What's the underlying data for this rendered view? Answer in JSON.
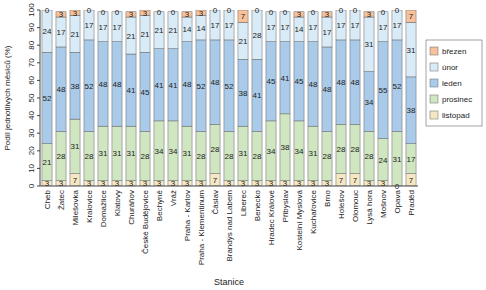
{
  "chart_data": {
    "type": "bar",
    "stacked": true,
    "data_labels": true,
    "grid": false,
    "legend": "right",
    "x_label": "Stanice",
    "y_label": "Podíl jednotlivých měsíců (%)",
    "categories": [
      "Cheb",
      "Žatec",
      "Milešovka",
      "Kralovice",
      "Domažlice",
      "Klatovy",
      "Churáňov",
      "České Budějovice",
      "Bechyně",
      "Vráž",
      "Praha - Karlov",
      "Praha - Klementinum",
      "Čáslav",
      "Brandýs nad Labem",
      "Liberec",
      "Benecko",
      "Hradec Králové",
      "Přibyslav",
      "Kostelní Myslová",
      "Kuchařovice",
      "Brno",
      "Holešov",
      "Olomouc",
      "Lysá hora",
      "Mošnov",
      "Opava",
      "Praděd"
    ],
    "ylim": [
      0,
      100
    ],
    "yticks": [
      0,
      10,
      20,
      30,
      40,
      50,
      60,
      70,
      80,
      90,
      100
    ],
    "series": [
      {
        "name": "listopad",
        "color": "#f6e7c4",
        "values": [
          3,
          3,
          7,
          3,
          3,
          3,
          3,
          3,
          3,
          3,
          3,
          3,
          7,
          3,
          3,
          3,
          3,
          3,
          3,
          3,
          3,
          7,
          7,
          3,
          3,
          0,
          7
        ]
      },
      {
        "name": "prosinec",
        "color": "#cfe6c1",
        "values": [
          21,
          28,
          31,
          28,
          31,
          31,
          31,
          28,
          34,
          34,
          31,
          28,
          28,
          28,
          31,
          28,
          34,
          38,
          34,
          31,
          28,
          28,
          28,
          28,
          24,
          31,
          17
        ]
      },
      {
        "name": "leden",
        "color": "#a9cbe9",
        "values": [
          52,
          48,
          38,
          52,
          48,
          48,
          41,
          45,
          41,
          41,
          48,
          52,
          48,
          52,
          38,
          41,
          45,
          41,
          45,
          48,
          48,
          48,
          48,
          34,
          55,
          52,
          38
        ]
      },
      {
        "name": "únor",
        "color": "#d9ebf6",
        "values": [
          24,
          17,
          21,
          17,
          17,
          17,
          21,
          21,
          21,
          21,
          14,
          14,
          17,
          17,
          21,
          28,
          17,
          17,
          14,
          17,
          17,
          17,
          17,
          31,
          17,
          17,
          31
        ]
      },
      {
        "name": "březen",
        "color": "#f7c29b",
        "values": [
          0,
          3,
          3,
          0,
          0,
          0,
          3,
          3,
          0,
          0,
          3,
          3,
          0,
          0,
          7,
          0,
          0,
          0,
          3,
          0,
          3,
          0,
          0,
          3,
          0,
          0,
          7
        ]
      }
    ]
  }
}
